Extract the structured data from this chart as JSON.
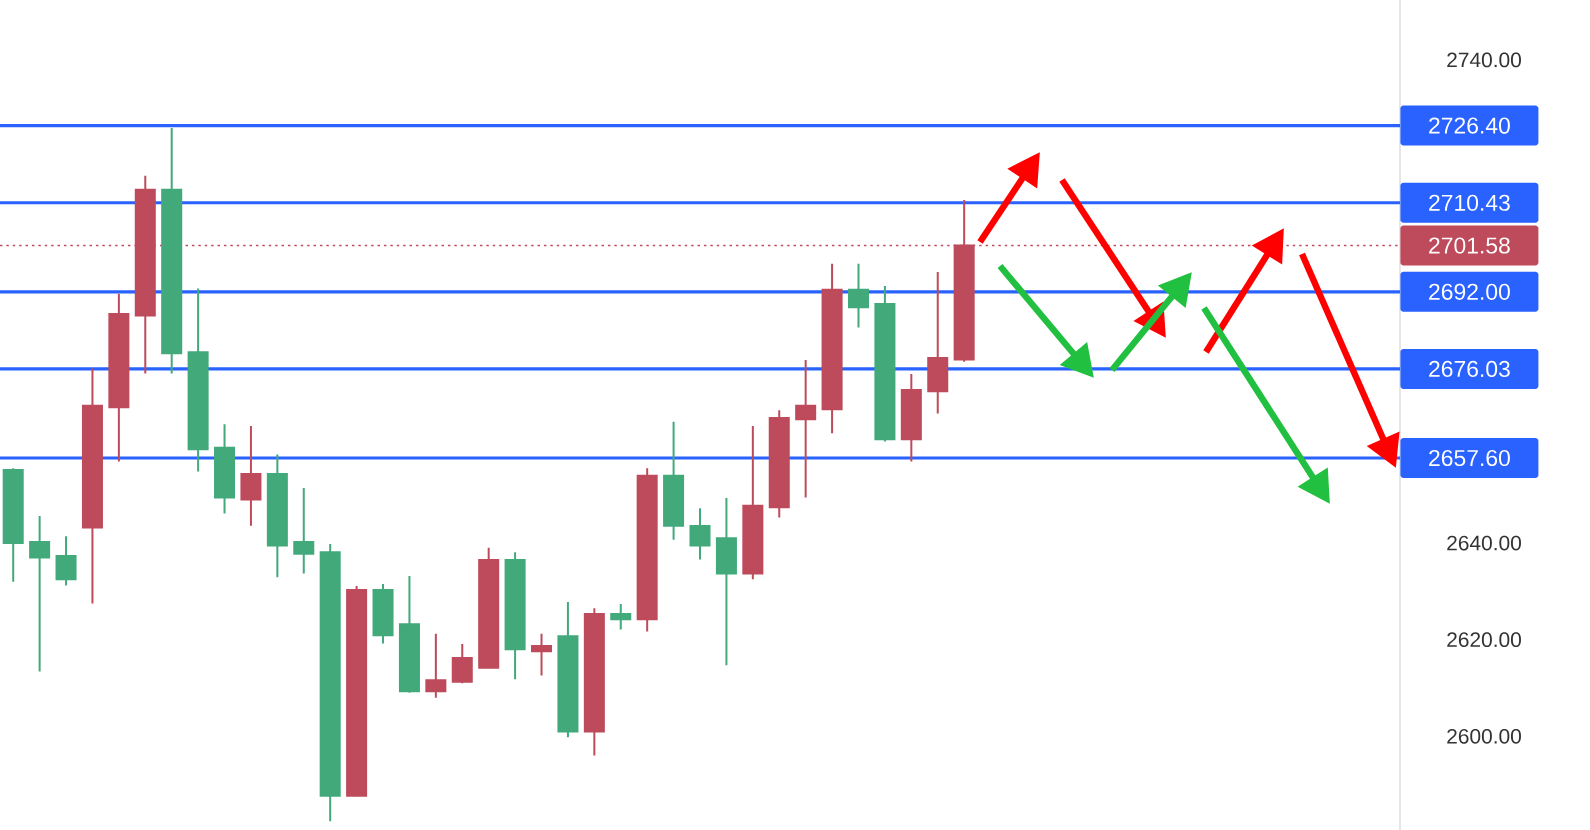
{
  "chart_data": {
    "type": "candlestick",
    "categories": [
      null,
      null,
      null,
      null,
      null,
      null,
      null,
      null,
      null,
      null,
      null,
      null,
      null,
      null,
      null,
      null,
      null,
      null,
      null,
      null,
      null,
      null,
      null,
      null,
      null,
      null,
      null,
      null,
      null,
      null,
      null,
      null,
      null,
      null,
      null,
      null,
      null,
      null,
      null,
      null,
      null,
      null,
      null,
      null,
      null,
      null,
      null,
      null,
      null,
      null,
      null,
      null,
      null
    ],
    "ohlc": [
      [
        2655.1,
        2655.5,
        2632.0,
        2640.0
      ],
      [
        2640.2,
        2645.6,
        2613.4,
        2637.0
      ],
      [
        2637.3,
        2641.4,
        2631.2,
        2632.5
      ],
      [
        2643.2,
        2676.1,
        2627.5,
        2668.4
      ],
      [
        2668.1,
        2691.6,
        2656.9,
        2687.4
      ],
      [
        2687.1,
        2716.0,
        2675.1,
        2713.1
      ],
      [
        2713.1,
        2725.9,
        2675.1,
        2679.3
      ],
      [
        2679.5,
        2692.7,
        2654.8,
        2659.4
      ],
      [
        2659.7,
        2664.6,
        2646.1,
        2649.4
      ],
      [
        2649.0,
        2664.2,
        2643.6,
        2654.3
      ],
      [
        2654.3,
        2658.3,
        2632.9,
        2639.5
      ],
      [
        2640.2,
        2651.4,
        2633.7,
        2637.8
      ],
      [
        2638.1,
        2639.8,
        2582.4,
        2587.7
      ],
      [
        2587.7,
        2631.1,
        2587.5,
        2630.3
      ],
      [
        2630.3,
        2631.5,
        2619.2,
        2620.9
      ],
      [
        2623.2,
        2633.2,
        2609.0,
        2609.3
      ],
      [
        2609.3,
        2621.2,
        2608.0,
        2611.6
      ],
      [
        2611.3,
        2619.1,
        2611.0,
        2616.2
      ],
      [
        2614.2,
        2639.0,
        2614.0,
        2636.5
      ],
      [
        2636.5,
        2638.1,
        2611.8,
        2618.0
      ],
      [
        2617.6,
        2621.2,
        2612.6,
        2618.7
      ],
      [
        2620.7,
        2627.8,
        2599.8,
        2601.0
      ],
      [
        2601.0,
        2626.5,
        2596.0,
        2625.3
      ],
      [
        2625.3,
        2627.4,
        2622.1,
        2624.2
      ],
      [
        2624.2,
        2655.5,
        2621.7,
        2653.9
      ],
      [
        2653.9,
        2665.1,
        2640.7,
        2643.6
      ],
      [
        2643.5,
        2647.2,
        2636.6,
        2639.5
      ],
      [
        2641.0,
        2649.3,
        2614.7,
        2633.7
      ],
      [
        2633.7,
        2664.2,
        2632.5,
        2647.7
      ],
      [
        2647.4,
        2667.5,
        2645.3,
        2665.9
      ],
      [
        2665.6,
        2677.9,
        2649.4,
        2668.4
      ],
      [
        2667.7,
        2697.8,
        2662.7,
        2692.4
      ],
      [
        2692.4,
        2697.8,
        2684.6,
        2688.8
      ],
      [
        2689.5,
        2693.2,
        2661.0,
        2661.5
      ],
      [
        2661.5,
        2675.0,
        2656.9,
        2671.7
      ],
      [
        2671.4,
        2696.1,
        2666.8,
        2678.3
      ],
      [
        2678.0,
        2711.0,
        2677.5,
        2701.58
      ],
      null,
      null,
      null,
      null,
      null,
      null,
      null,
      null,
      null,
      null,
      null,
      null,
      null,
      null,
      null,
      null
    ],
    "colors": [
      "#42a97b",
      "#42a97b",
      "#42a97b",
      "#bd4b5b",
      "#bd4b5b",
      "#bd4b5b",
      "#42a97b",
      "#42a97b",
      "#42a97b",
      "#bd4b5b",
      "#42a97b",
      "#42a97b",
      "#42a97b",
      "#bd4b5b",
      "#42a97b",
      "#42a97b",
      "#bd4b5b",
      "#bd4b5b",
      "#bd4b5b",
      "#42a97b",
      "#bd4b5b",
      "#42a97b",
      "#bd4b5b",
      "#42a97b",
      "#bd4b5b",
      "#42a97b",
      "#42a97b",
      "#42a97b",
      "#bd4b5b",
      "#bd4b5b",
      "#bd4b5b",
      "#bd4b5b",
      "#42a97b",
      "#42a97b",
      "#bd4b5b",
      "#bd4b5b",
      "#bd4b5b",
      null,
      null,
      null,
      null,
      null,
      null,
      null,
      null,
      null,
      null,
      null,
      null,
      null,
      null,
      null,
      null
    ],
    "ylim": [
      2580.6,
      2752.4
    ],
    "yticks": [
      {
        "value": 2600,
        "label": "2600.00"
      },
      {
        "value": 2620,
        "label": "2620.00"
      },
      {
        "value": 2640,
        "label": "2640.00"
      },
      {
        "value": 2740,
        "label": "2740.00"
      }
    ],
    "tick_labels": "y",
    "grid": false,
    "ref_lines": [
      {
        "axis": "y",
        "value": 2726.4,
        "label": "2726.40",
        "color": "#2962ff"
      },
      {
        "axis": "y",
        "value": 2710.43,
        "label": "2710.43",
        "color": "#2962ff"
      },
      {
        "axis": "y",
        "value": 2701.58,
        "label": "2701.58",
        "color": "#bd4b5b",
        "line_style": "dotted"
      },
      {
        "axis": "y",
        "value": 2692.0,
        "label": "2692.00",
        "color": "#2962ff"
      },
      {
        "axis": "y",
        "value": 2676.03,
        "label": "2676.03",
        "color": "#2962ff"
      },
      {
        "axis": "y",
        "value": 2657.6,
        "label": "2657.60",
        "color": "#2962ff"
      }
    ]
  }
}
